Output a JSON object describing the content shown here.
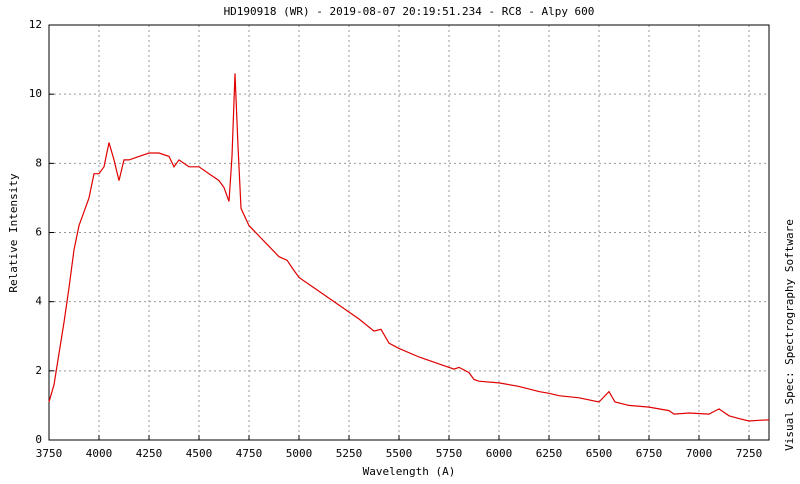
{
  "chart_data": {
    "type": "line",
    "title": "HD190918 (WR) - 2019-08-07 20:19:51.234 - RC8 - Alpy 600",
    "x_label": "Wavelength (A)",
    "y_label": "Relative Intensity",
    "side_label": "Visual Spec: Spectrography Software",
    "x": [
      3750,
      3775,
      3800,
      3825,
      3850,
      3875,
      3900,
      3925,
      3950,
      3975,
      4000,
      4025,
      4050,
      4075,
      4100,
      4125,
      4150,
      4200,
      4250,
      4300,
      4350,
      4375,
      4400,
      4450,
      4500,
      4550,
      4600,
      4625,
      4650,
      4665,
      4680,
      4695,
      4710,
      4750,
      4800,
      4850,
      4900,
      4940,
      4975,
      5000,
      5100,
      5200,
      5300,
      5375,
      5410,
      5450,
      5500,
      5600,
      5700,
      5775,
      5800,
      5850,
      5875,
      5900,
      6000,
      6100,
      6200,
      6250,
      6300,
      6400,
      6500,
      6550,
      6580,
      6650,
      6750,
      6850,
      6875,
      6950,
      7050,
      7100,
      7150,
      7200,
      7250,
      7300,
      7350
    ],
    "series": [
      {
        "name": "HD190918",
        "color": "#e00000",
        "values": [
          1.1,
          1.6,
          2.5,
          3.4,
          4.4,
          5.5,
          6.2,
          6.6,
          7.0,
          7.7,
          7.7,
          7.9,
          8.6,
          8.1,
          7.5,
          8.1,
          8.1,
          8.2,
          8.3,
          8.3,
          8.2,
          7.9,
          8.1,
          7.9,
          7.9,
          7.7,
          7.5,
          7.3,
          6.9,
          8.2,
          10.6,
          8.5,
          6.7,
          6.2,
          5.9,
          5.6,
          5.3,
          5.2,
          4.9,
          4.7,
          4.3,
          3.9,
          3.5,
          3.15,
          3.2,
          2.8,
          2.65,
          2.4,
          2.2,
          2.05,
          2.1,
          1.95,
          1.75,
          1.7,
          1.65,
          1.55,
          1.4,
          1.35,
          1.28,
          1.22,
          1.1,
          1.4,
          1.1,
          1.0,
          0.95,
          0.85,
          0.75,
          0.78,
          0.75,
          0.9,
          0.7,
          0.62,
          0.55,
          0.57,
          0.58
        ]
      }
    ],
    "xlim": [
      3750,
      7350
    ],
    "ylim": [
      0,
      12
    ],
    "xticks": [
      3750,
      4000,
      4250,
      4500,
      4750,
      5000,
      5250,
      5500,
      5750,
      6000,
      6250,
      6500,
      6750,
      7000,
      7250
    ],
    "yticks": [
      0,
      2,
      4,
      6,
      8,
      10,
      12
    ],
    "grid": true
  }
}
